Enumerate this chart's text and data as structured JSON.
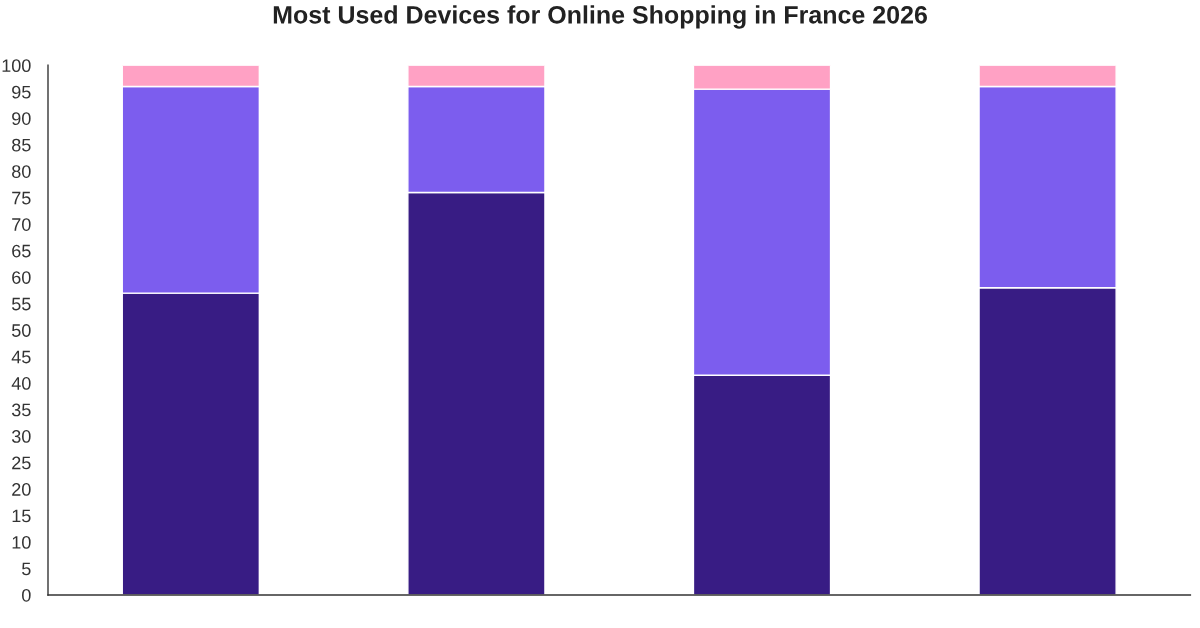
{
  "chart_data": {
    "type": "bar",
    "title": "Most Used Devices for Online Shopping in France 2026",
    "categories": [
      null,
      null,
      null,
      null
    ],
    "stacked": true,
    "series": [
      {
        "color": "#381c84",
        "values": [
          57,
          76,
          41.5,
          58
        ]
      },
      {
        "color": "#7c5dee",
        "values": [
          39,
          20,
          54,
          38
        ]
      },
      {
        "color": "#ffa1c4",
        "values": [
          4,
          4,
          4.5,
          4
        ]
      }
    ],
    "ylim": [
      0,
      100
    ],
    "yticks": [
      0,
      5,
      10,
      15,
      20,
      25,
      30,
      35,
      40,
      45,
      50,
      55,
      60,
      65,
      70,
      75,
      80,
      85,
      90,
      95,
      100
    ],
    "grid": false,
    "tick_labels": "y"
  }
}
